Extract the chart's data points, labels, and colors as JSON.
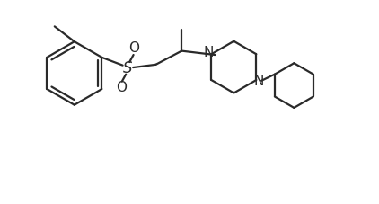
{
  "background": "#ffffff",
  "line_color": "#2a2a2a",
  "line_width": 1.6,
  "fig_width": 4.22,
  "fig_height": 2.27,
  "dpi": 100,
  "xlim": [
    0,
    10.5
  ],
  "ylim": [
    0,
    5.5
  ]
}
